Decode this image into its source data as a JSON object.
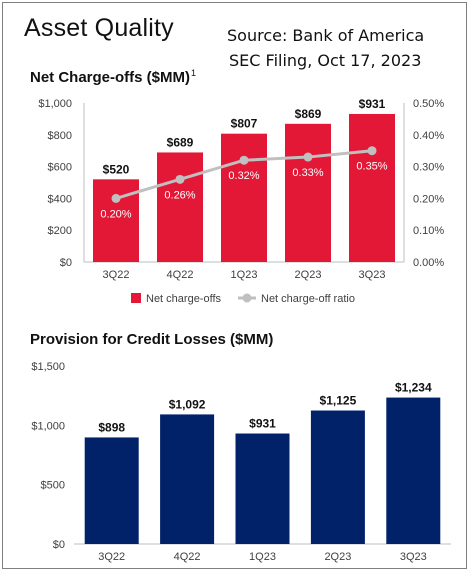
{
  "header": {
    "title": "Asset Quality",
    "source_line1": "Source: Bank of America",
    "source_line2": "SEC Filing, Oct 17, 2023"
  },
  "chart_data": [
    {
      "type": "bar",
      "title": "Net Charge-offs ($MM)",
      "title_footnote": "1",
      "categories": [
        "3Q22",
        "4Q22",
        "1Q23",
        "2Q23",
        "3Q23"
      ],
      "series": [
        {
          "name": "Net charge-offs",
          "type": "bar",
          "axis": "left",
          "values": [
            520,
            689,
            807,
            869,
            931
          ],
          "labels": [
            "$520",
            "$689",
            "$807",
            "$869",
            "$931"
          ],
          "color": "#e31837"
        },
        {
          "name": "Net charge-off ratio",
          "type": "line",
          "axis": "right",
          "values": [
            0.2,
            0.26,
            0.32,
            0.33,
            0.35
          ],
          "labels": [
            "0.20%",
            "0.26%",
            "0.32%",
            "0.33%",
            "0.35%"
          ],
          "color": "#c0c0c0"
        }
      ],
      "ylim": [
        0,
        1000
      ],
      "yticks": [
        0,
        200,
        400,
        600,
        800,
        1000
      ],
      "ytick_labels": [
        "$0",
        "$200",
        "$400",
        "$600",
        "$800",
        "$1,000"
      ],
      "y2lim": [
        0,
        0.5
      ],
      "y2ticks": [
        0,
        0.1,
        0.2,
        0.3,
        0.4,
        0.5
      ],
      "y2tick_labels": [
        "0.00%",
        "0.10%",
        "0.20%",
        "0.30%",
        "0.40%",
        "0.50%"
      ],
      "legend": "bottom",
      "grid": false
    },
    {
      "type": "bar",
      "title": "Provision for Credit Losses ($MM)",
      "categories": [
        "3Q22",
        "4Q22",
        "1Q23",
        "2Q23",
        "3Q23"
      ],
      "series": [
        {
          "name": "",
          "values": [
            898,
            1092,
            931,
            1125,
            1234
          ],
          "labels": [
            "$898",
            "$1,092",
            "$931",
            "$1,125",
            "$1,234"
          ],
          "color": "#012169"
        }
      ],
      "ylim": [
        0,
        1500
      ],
      "yticks": [
        0,
        500,
        1000,
        1500
      ],
      "ytick_labels": [
        "$0",
        "$500",
        "$1,000",
        "$1,500"
      ],
      "legend": "none",
      "grid": false
    }
  ]
}
